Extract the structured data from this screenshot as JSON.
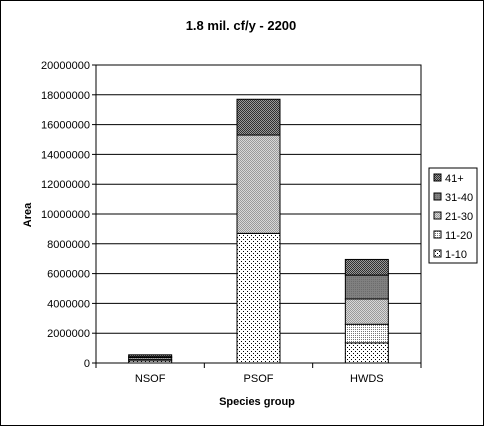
{
  "chart_data": {
    "type": "bar",
    "stacked": true,
    "title": "1.8 mil. cf/y - 2200",
    "xlabel": "Species group",
    "ylabel": "Area",
    "categories": [
      "NSOF",
      "PSOF",
      "HWDS"
    ],
    "ylim": [
      0,
      20000000
    ],
    "ytick_step": 2000000,
    "ytick_labels": [
      "0",
      "2000000",
      "4000000",
      "6000000",
      "8000000",
      "10000000",
      "12000000",
      "14000000",
      "16000000",
      "18000000",
      "20000000"
    ],
    "grid": true,
    "legend_position": "right",
    "series": [
      {
        "name": "1-10",
        "pattern": "sparse-dots",
        "values": [
          150000,
          8700000,
          1350000
        ]
      },
      {
        "name": "11-20",
        "pattern": "fine-dots",
        "values": [
          100000,
          0,
          1250000
        ]
      },
      {
        "name": "21-30",
        "pattern": "light-checker",
        "values": [
          120000,
          6600000,
          1700000
        ]
      },
      {
        "name": "31-40",
        "pattern": "dark-gray",
        "values": [
          50000,
          0,
          1600000
        ]
      },
      {
        "name": "41+",
        "pattern": "dark-checker",
        "values": [
          130000,
          2400000,
          1050000
        ]
      }
    ]
  }
}
